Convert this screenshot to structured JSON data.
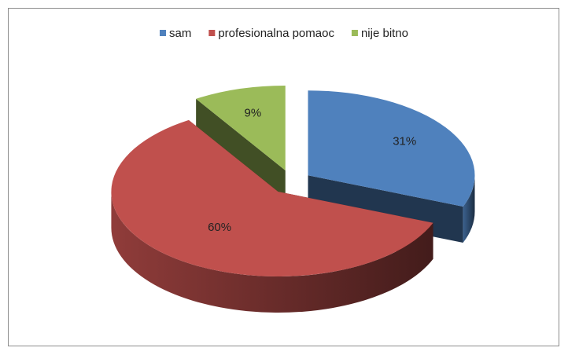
{
  "chart_data": {
    "type": "pie",
    "categories": [
      "sam",
      "profesionalna pomaoc",
      "nije bitno"
    ],
    "values": [
      31,
      60,
      9
    ],
    "value_labels": [
      "31%",
      "60%",
      "9%"
    ],
    "colors": [
      "#4f81bd",
      "#c0504d",
      "#9bbb59"
    ],
    "legend": "top"
  }
}
